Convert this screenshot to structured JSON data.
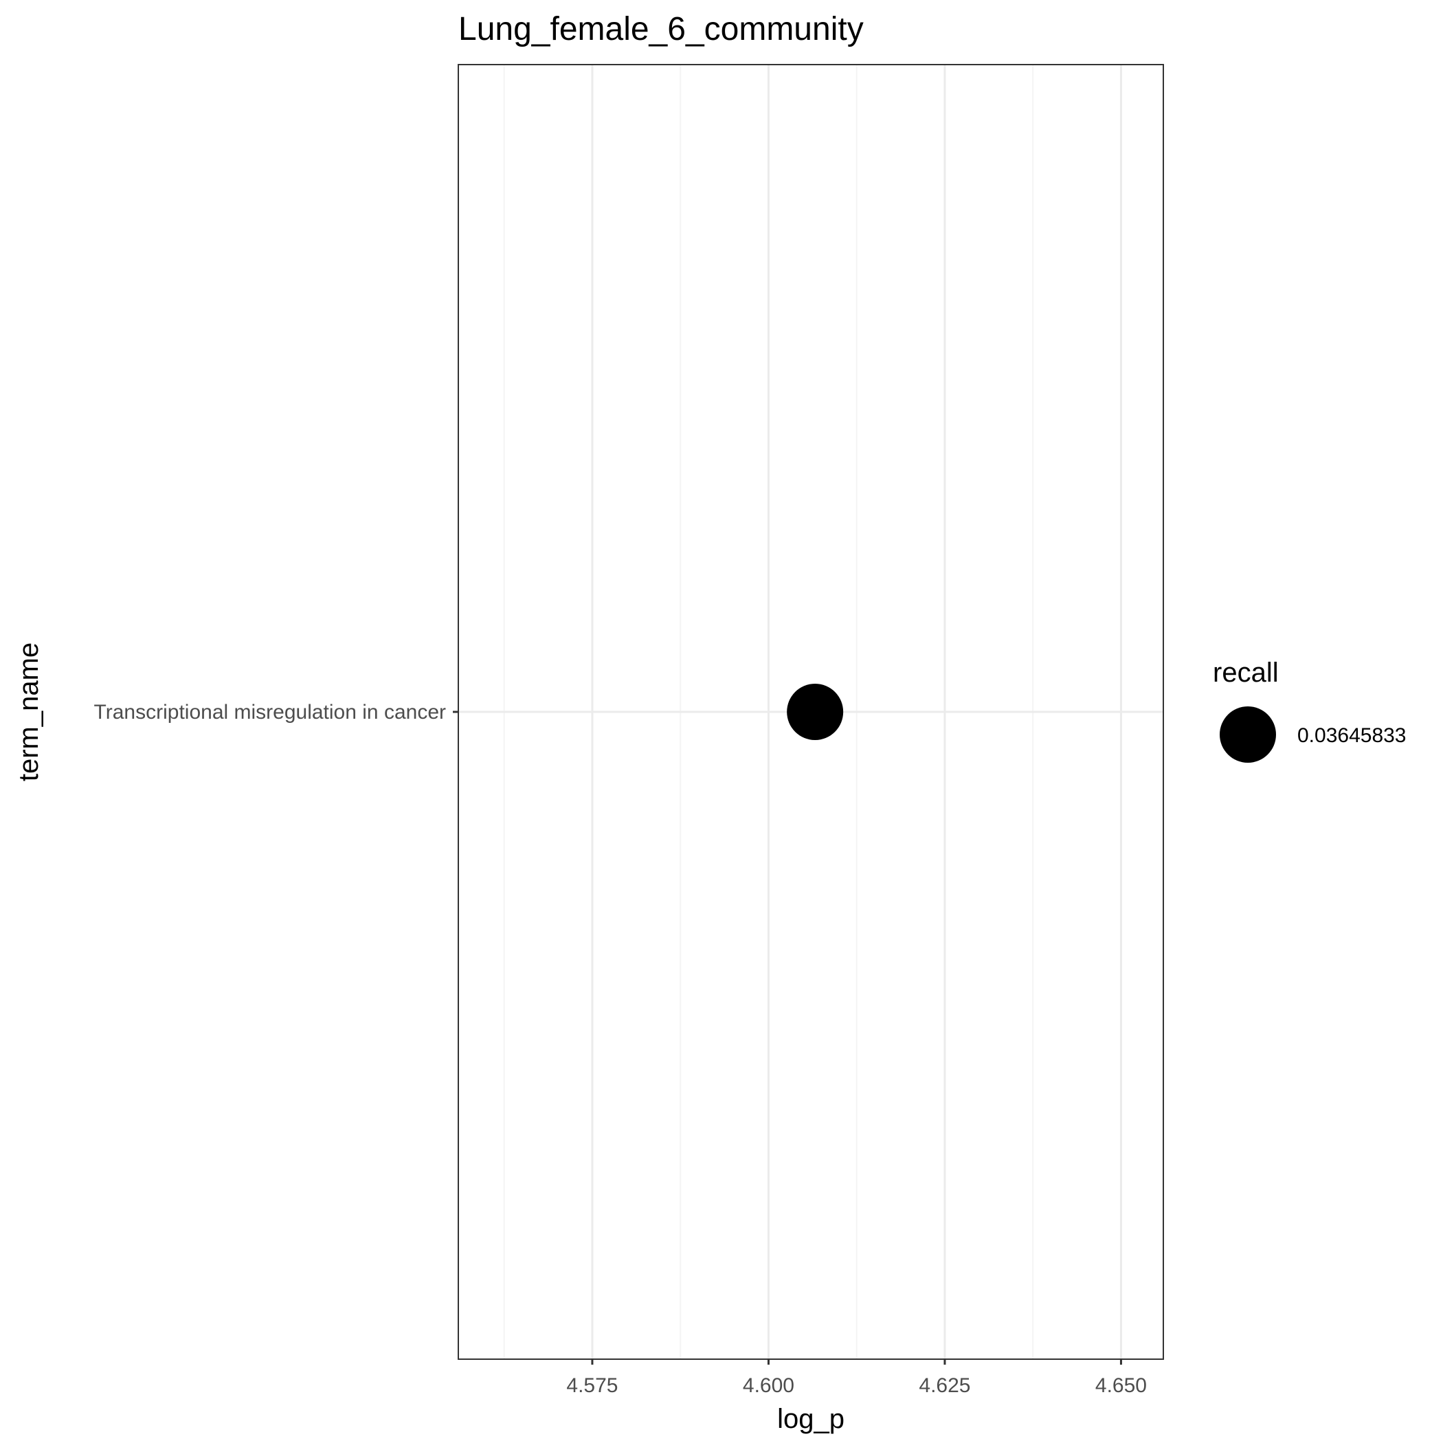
{
  "chart_data": {
    "type": "scatter",
    "title": "Lung_female_6_community",
    "xlabel": "log_p",
    "ylabel": "term_name",
    "x_ticks": [
      4.575,
      4.6,
      4.625,
      4.65
    ],
    "x_tick_labels": [
      "4.575",
      "4.600",
      "4.625",
      "4.650"
    ],
    "xlim": [
      4.556,
      4.656
    ],
    "categories": [
      "Transcriptional misregulation in cancer"
    ],
    "points": [
      {
        "term_name": "Transcriptional misregulation in cancer",
        "log_p": 4.6066,
        "recall": 0.03645833
      }
    ],
    "grid": true,
    "legend": {
      "title": "recall",
      "position": "right",
      "entries": [
        "0.03645833"
      ]
    },
    "colors": {
      "point": "#000000",
      "panel_border": "#333333",
      "grid_major": "#ebebeb",
      "grid_minor": "#f4f4f4"
    }
  }
}
